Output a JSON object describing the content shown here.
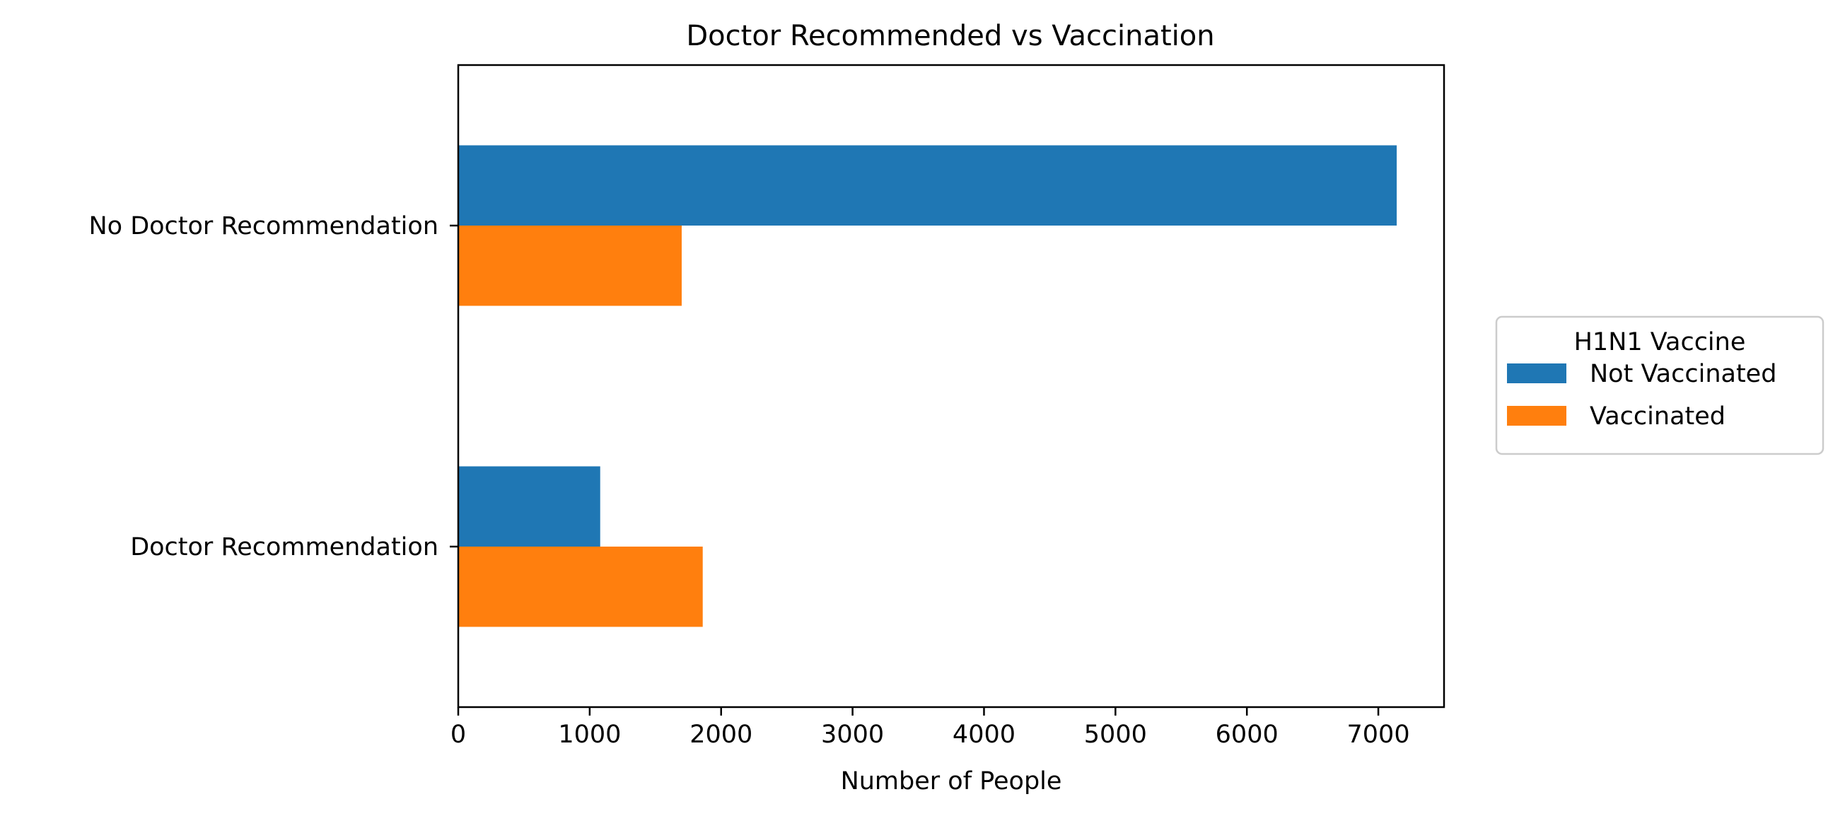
{
  "chart_data": {
    "type": "bar",
    "orientation": "horizontal",
    "title": "Doctor Recommended vs Vaccination",
    "xlabel": "Number of People",
    "ylabel": "",
    "categories": [
      "No Doctor Recommendation",
      "Doctor Recommendation"
    ],
    "xlim": [
      0,
      7500
    ],
    "xticks": [
      0,
      1000,
      2000,
      3000,
      4000,
      5000,
      6000,
      7000
    ],
    "grid": false,
    "legend_title": "H1N1 Vaccine",
    "legend_position": "center-right outside",
    "series": [
      {
        "name": "Not Vaccinated",
        "color": "#1f77b4",
        "values": [
          7140,
          1080
        ]
      },
      {
        "name": "Vaccinated",
        "color": "#ff7f0e",
        "values": [
          1700,
          1860
        ]
      }
    ]
  }
}
